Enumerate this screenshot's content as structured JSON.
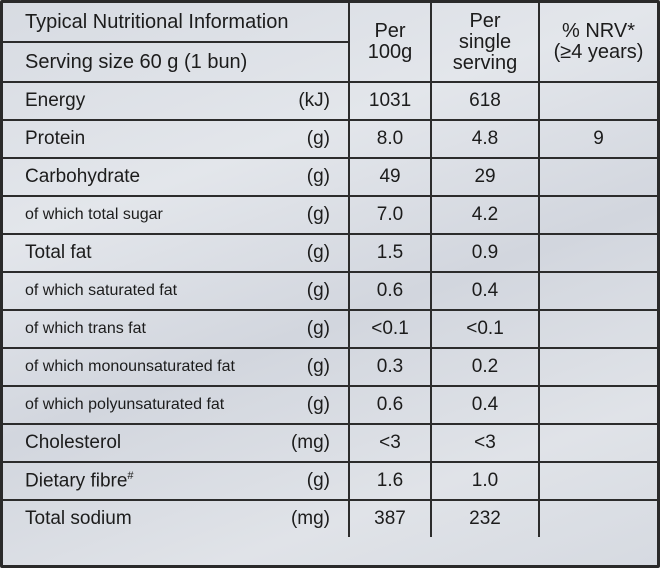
{
  "header": {
    "title": "Typical Nutritional Information",
    "serving": "Serving size 60 g (1 bun)",
    "col_per100": [
      "Per",
      "100g"
    ],
    "col_serving": [
      "Per",
      "single",
      "serving"
    ],
    "col_nrv": [
      "% NRV*",
      "(≥4 years)"
    ]
  },
  "rows": [
    {
      "name": "Energy",
      "unit": "(kJ)",
      "per100": "1031",
      "serving": "618",
      "nrv": ""
    },
    {
      "name": "Protein",
      "unit": "(g)",
      "per100": "8.0",
      "serving": "4.8",
      "nrv": "9"
    },
    {
      "name": "Carbohydrate",
      "unit": "(g)",
      "per100": "49",
      "serving": "29",
      "nrv": ""
    },
    {
      "name": "of which total sugar",
      "unit": "(g)",
      "per100": "7.0",
      "serving": "4.2",
      "nrv": ""
    },
    {
      "name": "Total fat",
      "unit": "(g)",
      "per100": "1.5",
      "serving": "0.9",
      "nrv": ""
    },
    {
      "name": "of which saturated fat",
      "unit": "(g)",
      "per100": "0.6",
      "serving": "0.4",
      "nrv": ""
    },
    {
      "name": "of which trans fat",
      "unit": "(g)",
      "per100": "<0.1",
      "serving": "<0.1",
      "nrv": ""
    },
    {
      "name": "of which monounsaturated fat",
      "unit": "(g)",
      "per100": "0.3",
      "serving": "0.2",
      "nrv": ""
    },
    {
      "name": "of which polyunsaturated fat",
      "unit": "(g)",
      "per100": "0.6",
      "serving": "0.4",
      "nrv": ""
    },
    {
      "name": "Cholesterol",
      "unit": "(mg)",
      "per100": "<3",
      "serving": "<3",
      "nrv": ""
    },
    {
      "name": "Dietary fibre",
      "name_sup": "#",
      "unit": "(g)",
      "per100": "1.6",
      "serving": "1.0",
      "nrv": ""
    },
    {
      "name": "Total sodium",
      "unit": "(mg)",
      "per100": "387",
      "serving": "232",
      "nrv": ""
    }
  ]
}
